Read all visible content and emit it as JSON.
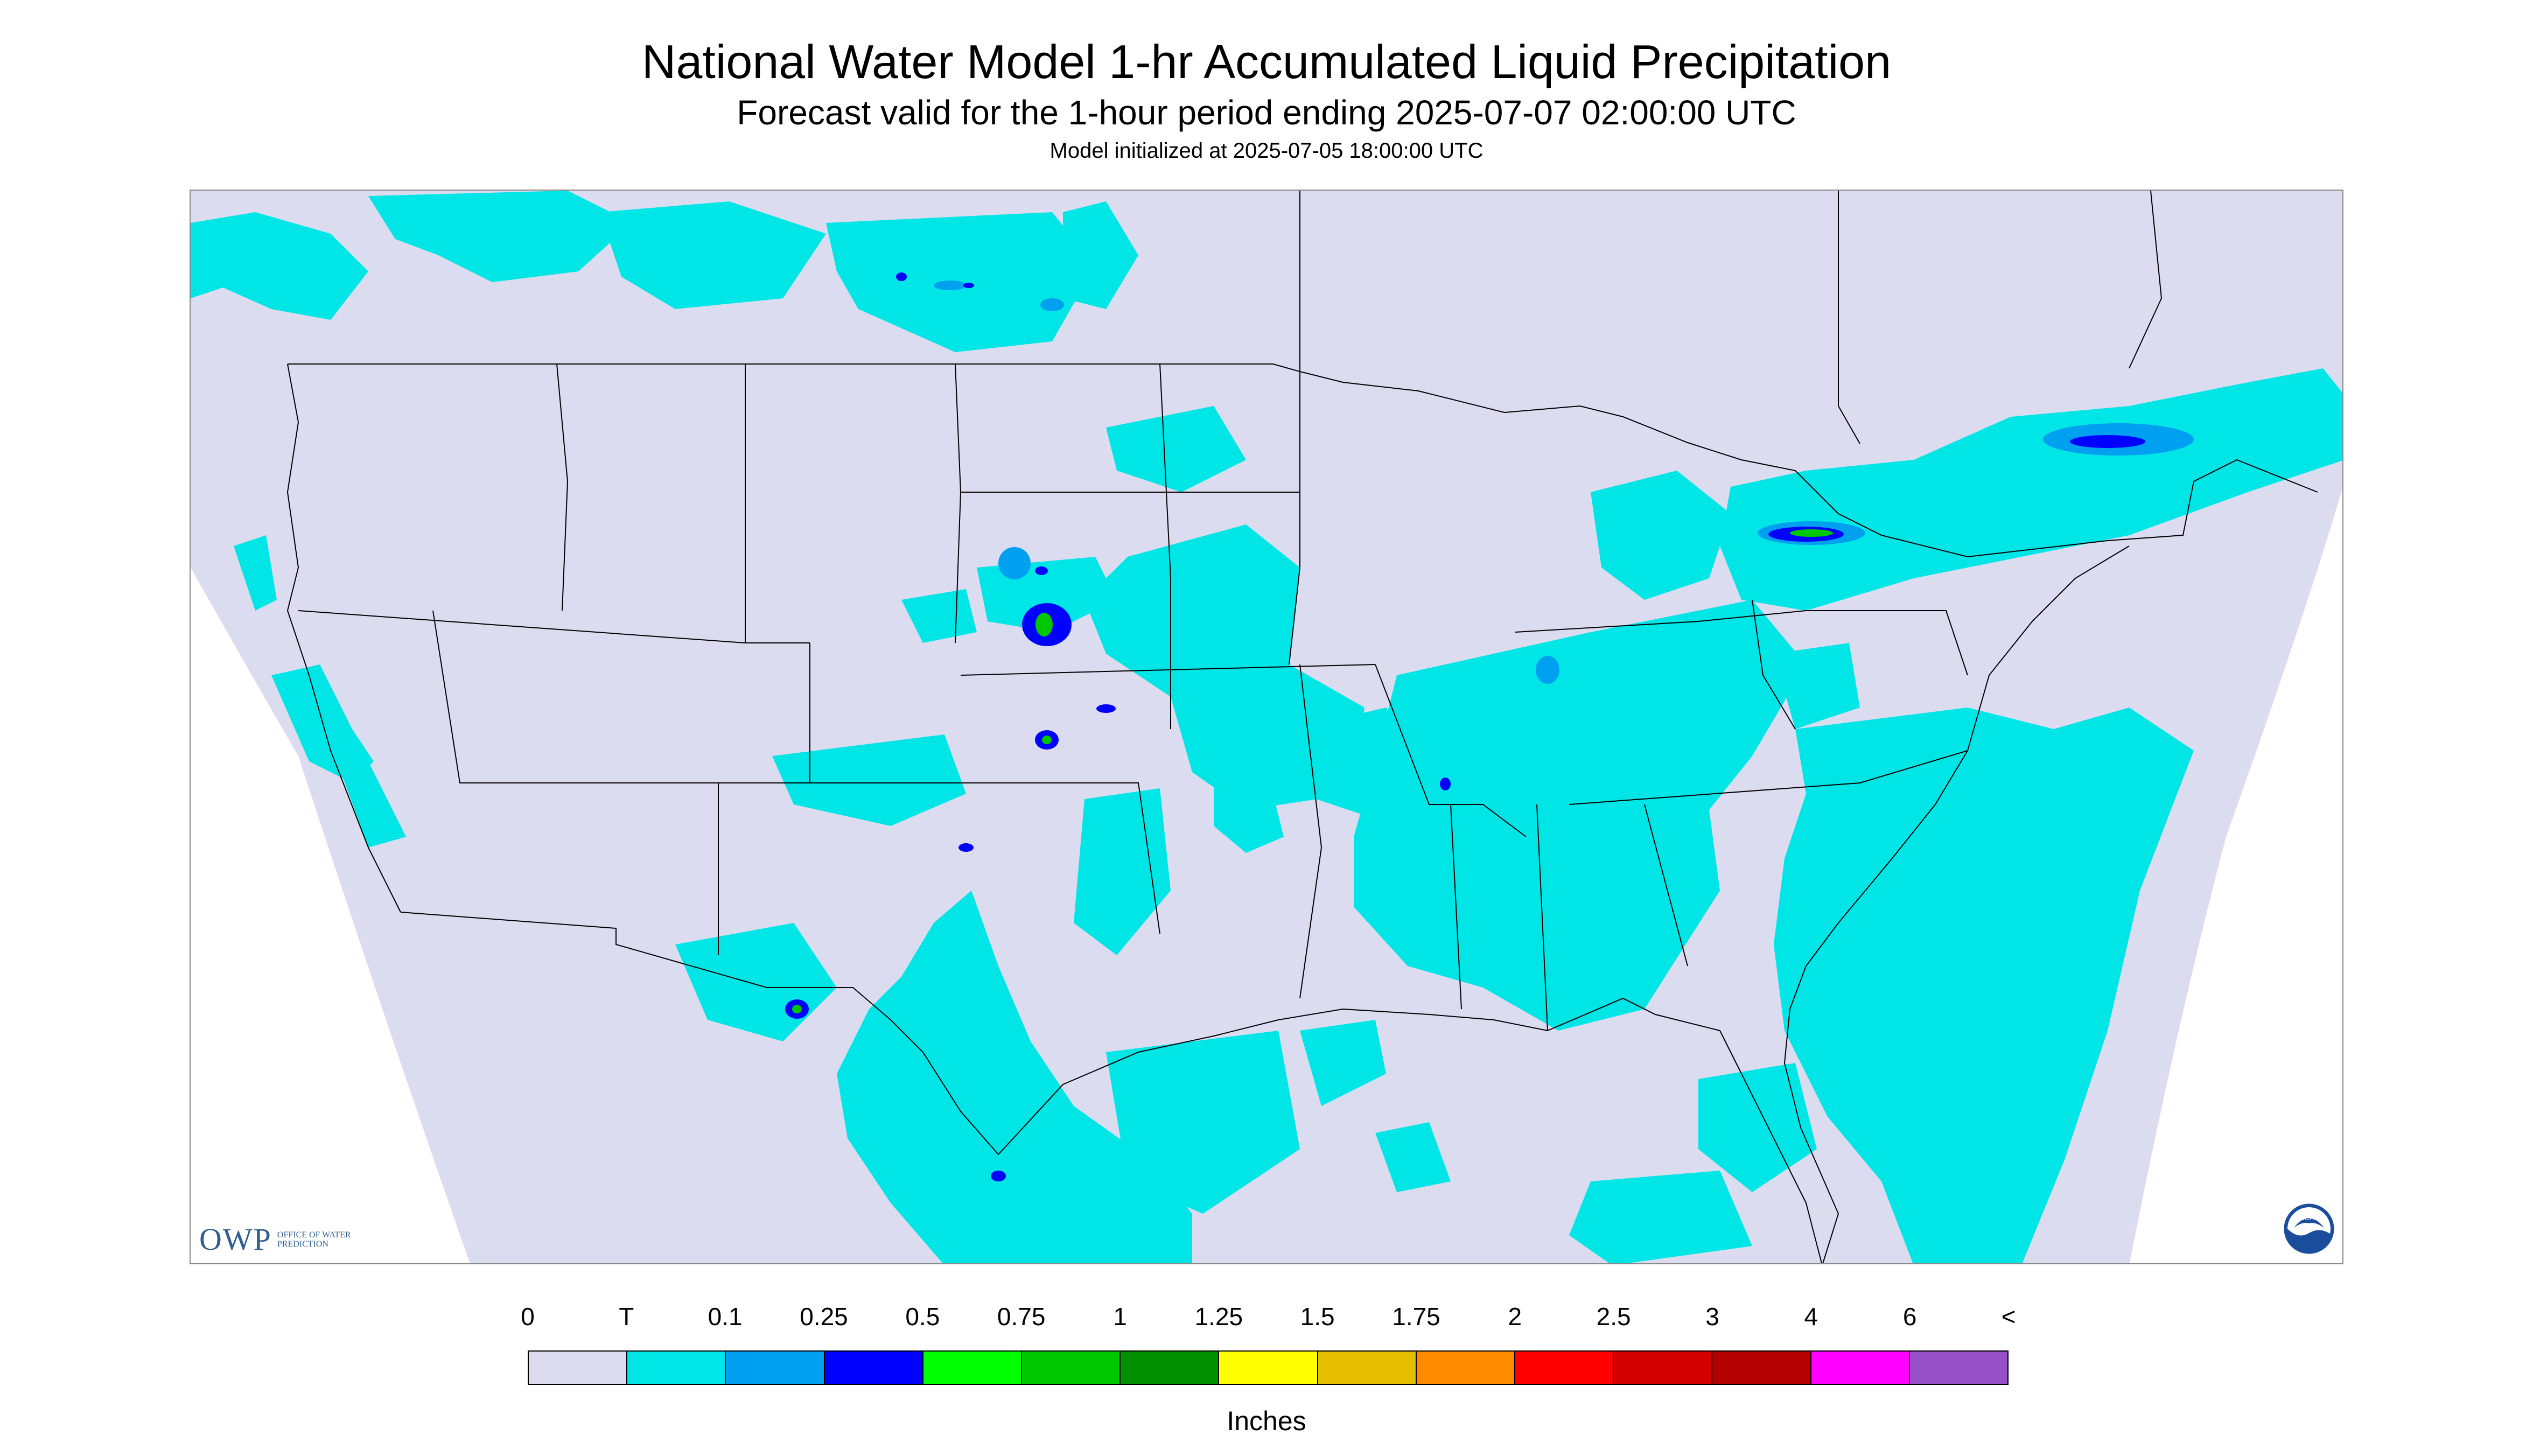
{
  "header": {
    "title": "National Water Model 1-hr Accumulated Liquid Precipitation",
    "subtitle": "Forecast valid for the 1-hour period ending 2025-07-07 02:00:00 UTC",
    "init_line": "Model initialized at 2025-07-05 18:00:00 UTC"
  },
  "logos": {
    "owp_mark": "OWP",
    "owp_text": "Office of Water Prediction",
    "noaa_text": "NOAA"
  },
  "legend": {
    "labels": [
      "0",
      "T",
      "0.1",
      "0.25",
      "0.5",
      "0.75",
      "1",
      "1.25",
      "1.5",
      "1.75",
      "2",
      "2.5",
      "3",
      "4",
      "6",
      "<"
    ],
    "colors": [
      "#dcdcf0",
      "#00e6e6",
      "#00a0f0",
      "#0000ff",
      "#00ff00",
      "#00c800",
      "#009000",
      "#ffff00",
      "#e6be00",
      "#ff8c00",
      "#ff0000",
      "#d20000",
      "#b40000",
      "#ff00ff",
      "#9650c8"
    ],
    "units": "Inches"
  },
  "map": {
    "background_color": "#ffffff",
    "domain_color": "#dcdcf0",
    "border_color": "#000000"
  }
}
